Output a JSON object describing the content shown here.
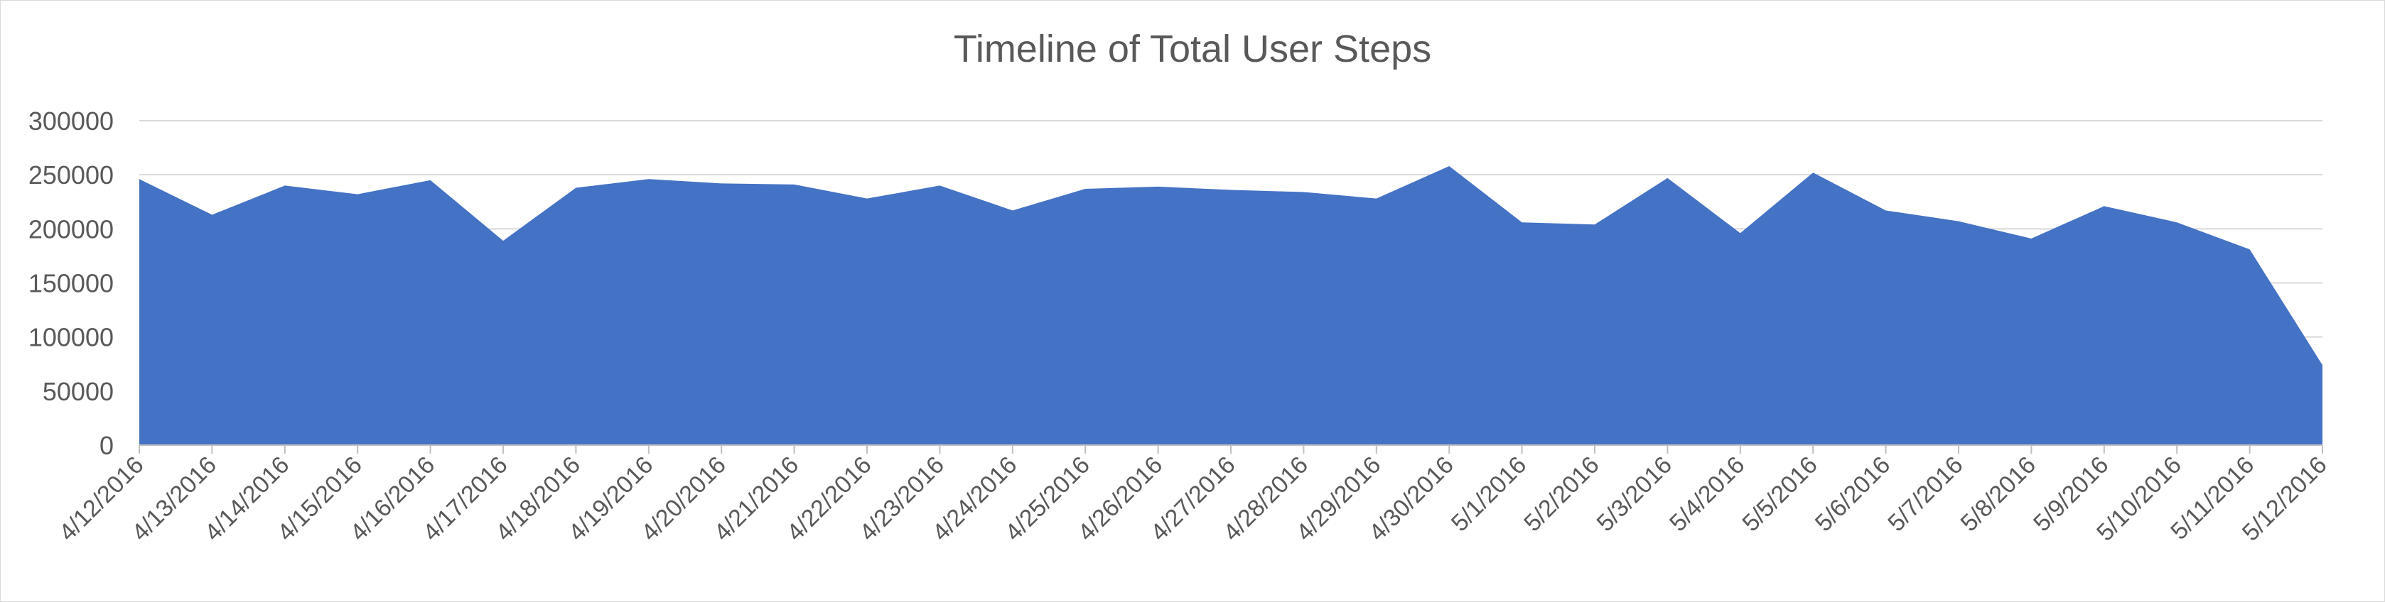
{
  "chart_data": {
    "type": "area",
    "title": "Timeline of Total User Steps",
    "xlabel": "",
    "ylabel": "",
    "ylim": [
      0,
      300000
    ],
    "yticks": [
      "0",
      "50000",
      "100000",
      "150000",
      "200000",
      "250000",
      "300000"
    ],
    "grid": true,
    "legend": "none",
    "color": "#4472c4",
    "categories": [
      "4/12/2016",
      "4/13/2016",
      "4/14/2016",
      "4/15/2016",
      "4/16/2016",
      "4/17/2016",
      "4/18/2016",
      "4/19/2016",
      "4/20/2016",
      "4/21/2016",
      "4/22/2016",
      "4/23/2016",
      "4/24/2016",
      "4/25/2016",
      "4/26/2016",
      "4/27/2016",
      "4/28/2016",
      "4/29/2016",
      "4/30/2016",
      "5/1/2016",
      "5/2/2016",
      "5/3/2016",
      "5/4/2016",
      "5/5/2016",
      "5/6/2016",
      "5/7/2016",
      "5/8/2016",
      "5/9/2016",
      "5/10/2016",
      "5/11/2016",
      "5/12/2016"
    ],
    "values": [
      246000,
      213000,
      240000,
      232000,
      245000,
      189000,
      238000,
      246000,
      242000,
      241000,
      228000,
      240000,
      217000,
      237000,
      239000,
      236000,
      234000,
      228000,
      258000,
      206000,
      204000,
      247000,
      196000,
      252000,
      217000,
      207000,
      191000,
      221000,
      206000,
      181000,
      74000
    ]
  }
}
